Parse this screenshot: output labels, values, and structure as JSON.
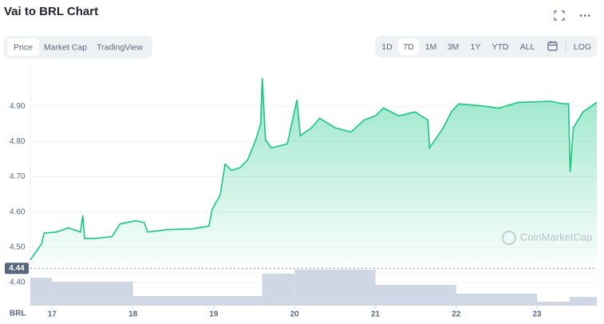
{
  "chart_data": {
    "type": "area",
    "title": "Vai to BRL Chart",
    "tabs": [
      "Price",
      "Market Cap",
      "TradingView"
    ],
    "active_tab": 0,
    "ranges": [
      "1D",
      "7D",
      "1M",
      "3M",
      "1Y",
      "YTD",
      "ALL"
    ],
    "active_range": 1,
    "log_label": "LOG",
    "watermark": "CoinMarketCap",
    "x_axis_label": "BRL",
    "color": "#16c784",
    "x": [
      16.73,
      16.8,
      16.87,
      16.9,
      17.05,
      17.2,
      17.35,
      17.38,
      17.4,
      17.54,
      17.74,
      17.84,
      18.03,
      18.14,
      18.18,
      18.43,
      18.73,
      18.94,
      18.98,
      19.08,
      19.14,
      19.22,
      19.32,
      19.42,
      19.52,
      19.58,
      19.6,
      19.64,
      19.71,
      19.91,
      20.03,
      20.07,
      20.21,
      20.31,
      20.5,
      20.7,
      20.86,
      21.0,
      21.1,
      21.29,
      21.49,
      21.65,
      21.67,
      21.74,
      21.84,
      21.94,
      22.03,
      22.28,
      22.53,
      22.77,
      23.17,
      23.32,
      23.39,
      23.41,
      23.45,
      23.57,
      23.74
    ],
    "values": [
      4.464,
      4.487,
      4.51,
      4.54,
      4.543,
      4.555,
      4.543,
      4.59,
      4.525,
      4.525,
      4.53,
      4.566,
      4.575,
      4.57,
      4.543,
      4.55,
      4.552,
      4.56,
      4.607,
      4.648,
      4.736,
      4.718,
      4.725,
      4.748,
      4.805,
      4.85,
      4.98,
      4.805,
      4.782,
      4.793,
      4.918,
      4.816,
      4.839,
      4.866,
      4.839,
      4.827,
      4.861,
      4.873,
      4.895,
      4.873,
      4.884,
      4.861,
      4.782,
      4.805,
      4.839,
      4.884,
      4.907,
      4.902,
      4.895,
      4.911,
      4.914,
      4.907,
      4.907,
      4.714,
      4.839,
      4.884,
      4.911
    ],
    "current_price": 4.44,
    "volume": {
      "bins": [
        16.73,
        17,
        18,
        19,
        19.6,
        20,
        21,
        22,
        23,
        23.4,
        23.74
      ],
      "values": [
        35,
        30,
        12,
        12,
        40,
        45,
        26,
        15,
        5,
        11
      ],
      "color": "#cfd6e4"
    },
    "xlim": [
      16.73,
      23.74
    ],
    "xticks": [
      17,
      18,
      19,
      20,
      21,
      22,
      23
    ],
    "ylim": [
      4.35,
      5.0
    ],
    "yticks": [
      {
        "value": 4.4,
        "label": "4.40"
      },
      {
        "value": 4.5,
        "label": "4.50"
      },
      {
        "value": 4.6,
        "label": "4.60"
      },
      {
        "value": 4.7,
        "label": "4.70"
      },
      {
        "value": 4.8,
        "label": "4.80"
      },
      {
        "value": 4.9,
        "label": "4.90"
      }
    ],
    "grid": true
  }
}
